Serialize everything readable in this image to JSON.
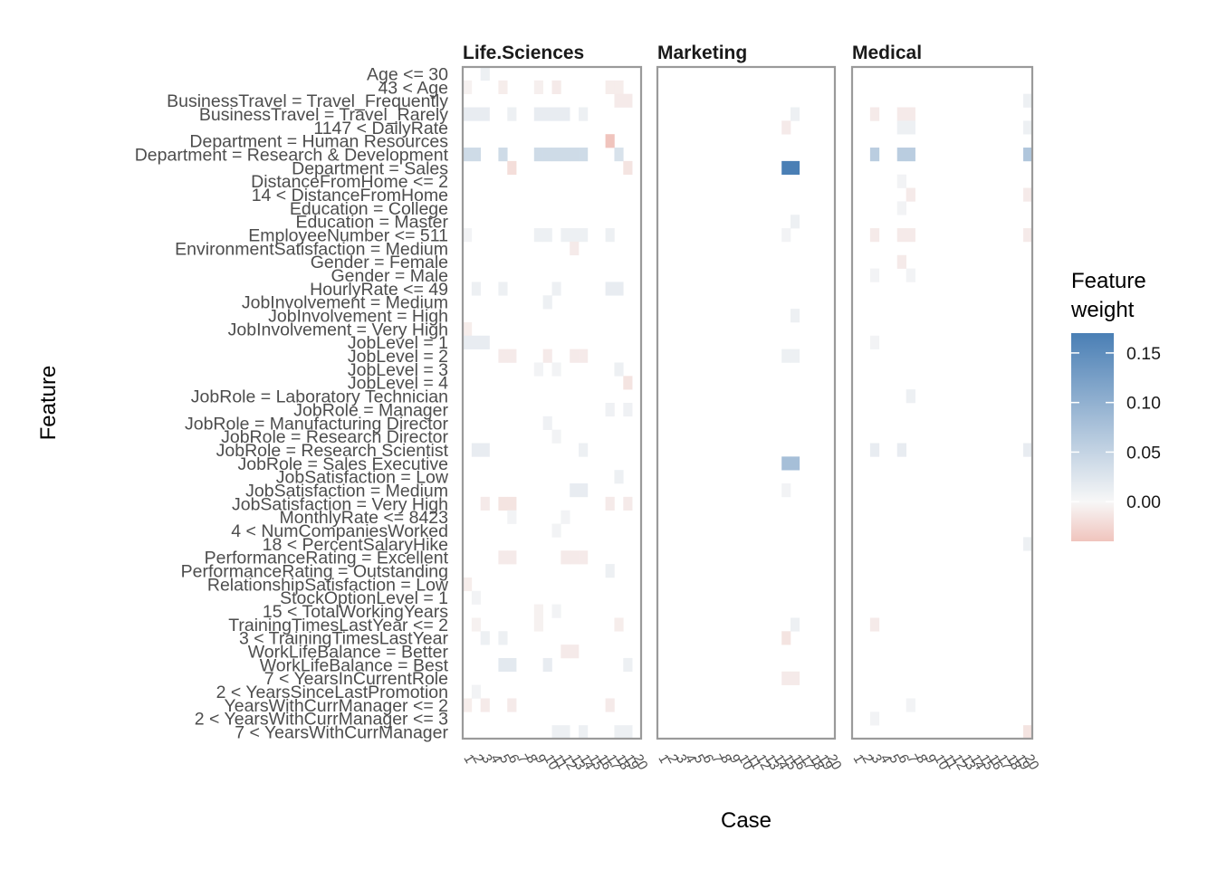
{
  "chart_data": {
    "type": "heatmap",
    "xlabel": "Case",
    "ylabel": "Feature",
    "legend_title": [
      "Feature",
      "weight"
    ],
    "legend_ticks": [
      0.15,
      0.1,
      0.05,
      0.0
    ],
    "legend_tick_labels": [
      "0.15",
      "0.10",
      "0.05",
      "0.00"
    ],
    "legend_range": [
      -0.04,
      0.17
    ],
    "color_scale": {
      "low": "#f0c4bd",
      "mid": "#f7f7f7",
      "high": "#4a7fb5"
    },
    "grid": false,
    "legend_position": "right",
    "cases": [
      "1",
      "2",
      "3",
      "4",
      "5",
      "6",
      "7",
      "8",
      "9",
      "10",
      "11",
      "12",
      "13",
      "14",
      "15",
      "16",
      "17",
      "18",
      "19",
      "20"
    ],
    "facets": [
      "Life.Sciences",
      "Marketing",
      "Medical"
    ],
    "features": [
      "Age <= 30",
      "43 < Age",
      "BusinessTravel = Travel_Frequently",
      "BusinessTravel = Travel_Rarely",
      "1147 < DailyRate",
      "Department = Human Resources",
      "Department = Research & Development",
      "Department = Sales",
      "DistanceFromHome <= 2",
      "14 < DistanceFromHome",
      "Education = College",
      "Education = Master",
      "EmployeeNumber <= 511",
      "EnvironmentSatisfaction = Medium",
      "Gender = Female",
      "Gender = Male",
      "HourlyRate <= 49",
      "JobInvolvement = Medium",
      "JobInvolvement = High",
      "JobInvolvement = Very High",
      "JobLevel = 1",
      "JobLevel = 2",
      "JobLevel = 3",
      "JobLevel = 4",
      "JobRole = Laboratory Technician",
      "JobRole = Manager",
      "JobRole = Manufacturing Director",
      "JobRole = Research Director",
      "JobRole = Research Scientist",
      "JobRole = Sales Executive",
      "JobSatisfaction = Low",
      "JobSatisfaction = Medium",
      "JobSatisfaction = Very High",
      "MonthlyRate <= 8423",
      "4 < NumCompaniesWorked",
      "18 < PercentSalaryHike",
      "PerformanceRating = Excellent",
      "PerformanceRating = Outstanding",
      "RelationshipSatisfaction = Low",
      "StockOptionLevel = 1",
      "15 < TotalWorkingYears",
      "TrainingTimesLastYear <= 2",
      "3 < TrainingTimesLastYear",
      "WorkLifeBalance = Better",
      "WorkLifeBalance = Best",
      "7 < YearsInCurrentRole",
      "2 < YearsSinceLastPromotion",
      "YearsWithCurrManager <= 2",
      "2 < YearsWithCurrManager <= 3",
      "7 < YearsWithCurrManager"
    ],
    "cells": [
      [
        "Life.Sciences",
        0,
        2,
        0.01
      ],
      [
        "Life.Sciences",
        1,
        0,
        -0.005
      ],
      [
        "Life.Sciences",
        1,
        4,
        -0.008
      ],
      [
        "Life.Sciences",
        1,
        8,
        -0.006
      ],
      [
        "Life.Sciences",
        1,
        10,
        -0.01
      ],
      [
        "Life.Sciences",
        1,
        16,
        -0.008
      ],
      [
        "Life.Sciences",
        1,
        17,
        -0.008
      ],
      [
        "Life.Sciences",
        2,
        17,
        -0.01
      ],
      [
        "Life.Sciences",
        2,
        18,
        -0.01
      ],
      [
        "Life.Sciences",
        3,
        0,
        0.015
      ],
      [
        "Life.Sciences",
        3,
        1,
        0.015
      ],
      [
        "Life.Sciences",
        3,
        2,
        0.015
      ],
      [
        "Life.Sciences",
        3,
        5,
        0.01
      ],
      [
        "Life.Sciences",
        3,
        8,
        0.015
      ],
      [
        "Life.Sciences",
        3,
        9,
        0.015
      ],
      [
        "Life.Sciences",
        3,
        10,
        0.015
      ],
      [
        "Life.Sciences",
        3,
        11,
        0.015
      ],
      [
        "Life.Sciences",
        3,
        13,
        0.01
      ],
      [
        "Life.Sciences",
        5,
        16,
        -0.04
      ],
      [
        "Life.Sciences",
        6,
        0,
        0.04
      ],
      [
        "Life.Sciences",
        6,
        1,
        0.04
      ],
      [
        "Life.Sciences",
        6,
        4,
        0.04
      ],
      [
        "Life.Sciences",
        6,
        8,
        0.04
      ],
      [
        "Life.Sciences",
        6,
        9,
        0.04
      ],
      [
        "Life.Sciences",
        6,
        10,
        0.04
      ],
      [
        "Life.Sciences",
        6,
        11,
        0.04
      ],
      [
        "Life.Sciences",
        6,
        12,
        0.04
      ],
      [
        "Life.Sciences",
        6,
        13,
        0.04
      ],
      [
        "Life.Sciences",
        6,
        17,
        0.03
      ],
      [
        "Life.Sciences",
        7,
        5,
        -0.02
      ],
      [
        "Life.Sciences",
        7,
        18,
        -0.015
      ],
      [
        "Life.Sciences",
        12,
        0,
        0.005
      ],
      [
        "Life.Sciences",
        12,
        8,
        0.01
      ],
      [
        "Life.Sciences",
        12,
        9,
        0.01
      ],
      [
        "Life.Sciences",
        12,
        11,
        0.01
      ],
      [
        "Life.Sciences",
        12,
        12,
        0.01
      ],
      [
        "Life.Sciences",
        12,
        13,
        0.01
      ],
      [
        "Life.Sciences",
        12,
        16,
        0.01
      ],
      [
        "Life.Sciences",
        13,
        12,
        -0.01
      ],
      [
        "Life.Sciences",
        16,
        1,
        0.01
      ],
      [
        "Life.Sciences",
        16,
        4,
        0.01
      ],
      [
        "Life.Sciences",
        16,
        10,
        0.01
      ],
      [
        "Life.Sciences",
        16,
        16,
        0.015
      ],
      [
        "Life.Sciences",
        16,
        17,
        0.015
      ],
      [
        "Life.Sciences",
        17,
        9,
        0.01
      ],
      [
        "Life.Sciences",
        19,
        0,
        -0.008
      ],
      [
        "Life.Sciences",
        20,
        0,
        0.015
      ],
      [
        "Life.Sciences",
        20,
        1,
        0.015
      ],
      [
        "Life.Sciences",
        20,
        2,
        0.015
      ],
      [
        "Life.Sciences",
        21,
        4,
        -0.01
      ],
      [
        "Life.Sciences",
        21,
        5,
        -0.01
      ],
      [
        "Life.Sciences",
        21,
        9,
        -0.01
      ],
      [
        "Life.Sciences",
        21,
        12,
        -0.01
      ],
      [
        "Life.Sciences",
        21,
        13,
        -0.01
      ],
      [
        "Life.Sciences",
        22,
        8,
        0.005
      ],
      [
        "Life.Sciences",
        22,
        10,
        0.005
      ],
      [
        "Life.Sciences",
        22,
        17,
        0.01
      ],
      [
        "Life.Sciences",
        23,
        18,
        -0.015
      ],
      [
        "Life.Sciences",
        25,
        16,
        0.008
      ],
      [
        "Life.Sciences",
        25,
        18,
        0.008
      ],
      [
        "Life.Sciences",
        26,
        9,
        0.008
      ],
      [
        "Life.Sciences",
        27,
        10,
        0.005
      ],
      [
        "Life.Sciences",
        28,
        1,
        0.015
      ],
      [
        "Life.Sciences",
        28,
        2,
        0.015
      ],
      [
        "Life.Sciences",
        28,
        13,
        0.01
      ],
      [
        "Life.Sciences",
        30,
        17,
        0.01
      ],
      [
        "Life.Sciences",
        31,
        12,
        0.015
      ],
      [
        "Life.Sciences",
        31,
        13,
        0.015
      ],
      [
        "Life.Sciences",
        32,
        2,
        -0.01
      ],
      [
        "Life.Sciences",
        32,
        4,
        -0.015
      ],
      [
        "Life.Sciences",
        32,
        5,
        -0.015
      ],
      [
        "Life.Sciences",
        32,
        16,
        -0.01
      ],
      [
        "Life.Sciences",
        32,
        18,
        -0.01
      ],
      [
        "Life.Sciences",
        33,
        5,
        0.005
      ],
      [
        "Life.Sciences",
        33,
        11,
        0.005
      ],
      [
        "Life.Sciences",
        34,
        10,
        0.005
      ],
      [
        "Life.Sciences",
        36,
        4,
        -0.01
      ],
      [
        "Life.Sciences",
        36,
        5,
        -0.01
      ],
      [
        "Life.Sciences",
        36,
        11,
        -0.01
      ],
      [
        "Life.Sciences",
        36,
        12,
        -0.01
      ],
      [
        "Life.Sciences",
        36,
        13,
        -0.01
      ],
      [
        "Life.Sciences",
        37,
        16,
        0.01
      ],
      [
        "Life.Sciences",
        38,
        0,
        -0.008
      ],
      [
        "Life.Sciences",
        39,
        1,
        0.005
      ],
      [
        "Life.Sciences",
        40,
        8,
        -0.005
      ],
      [
        "Life.Sciences",
        40,
        10,
        0.005
      ],
      [
        "Life.Sciences",
        41,
        1,
        -0.005
      ],
      [
        "Life.Sciences",
        41,
        8,
        -0.005
      ],
      [
        "Life.Sciences",
        41,
        17,
        -0.008
      ],
      [
        "Life.Sciences",
        42,
        2,
        0.01
      ],
      [
        "Life.Sciences",
        42,
        4,
        0.01
      ],
      [
        "Life.Sciences",
        43,
        11,
        -0.01
      ],
      [
        "Life.Sciences",
        43,
        12,
        -0.01
      ],
      [
        "Life.Sciences",
        44,
        4,
        0.02
      ],
      [
        "Life.Sciences",
        44,
        5,
        0.02
      ],
      [
        "Life.Sciences",
        44,
        9,
        0.015
      ],
      [
        "Life.Sciences",
        44,
        18,
        0.01
      ],
      [
        "Life.Sciences",
        46,
        1,
        0.005
      ],
      [
        "Life.Sciences",
        47,
        0,
        -0.008
      ],
      [
        "Life.Sciences",
        47,
        2,
        -0.01
      ],
      [
        "Life.Sciences",
        47,
        5,
        -0.01
      ],
      [
        "Life.Sciences",
        47,
        16,
        -0.01
      ],
      [
        "Life.Sciences",
        49,
        10,
        0.01
      ],
      [
        "Life.Sciences",
        49,
        11,
        0.01
      ],
      [
        "Life.Sciences",
        49,
        13,
        0.01
      ],
      [
        "Life.Sciences",
        49,
        17,
        0.01
      ],
      [
        "Life.Sciences",
        49,
        18,
        0.01
      ],
      [
        "Marketing",
        3,
        15,
        0.01
      ],
      [
        "Marketing",
        4,
        14,
        -0.01
      ],
      [
        "Marketing",
        7,
        14,
        0.17
      ],
      [
        "Marketing",
        7,
        15,
        0.17
      ],
      [
        "Marketing",
        11,
        15,
        0.01
      ],
      [
        "Marketing",
        12,
        14,
        0.005
      ],
      [
        "Marketing",
        18,
        15,
        0.01
      ],
      [
        "Marketing",
        21,
        14,
        0.01
      ],
      [
        "Marketing",
        21,
        15,
        0.01
      ],
      [
        "Marketing",
        29,
        14,
        0.08
      ],
      [
        "Marketing",
        29,
        15,
        0.08
      ],
      [
        "Marketing",
        31,
        14,
        0.005
      ],
      [
        "Marketing",
        41,
        15,
        0.01
      ],
      [
        "Marketing",
        42,
        14,
        -0.015
      ],
      [
        "Marketing",
        45,
        14,
        -0.01
      ],
      [
        "Marketing",
        45,
        15,
        -0.01
      ],
      [
        "Medical",
        2,
        19,
        0.01
      ],
      [
        "Medical",
        3,
        2,
        -0.01
      ],
      [
        "Medical",
        3,
        5,
        -0.01
      ],
      [
        "Medical",
        3,
        6,
        -0.01
      ],
      [
        "Medical",
        4,
        5,
        0.01
      ],
      [
        "Medical",
        4,
        6,
        0.01
      ],
      [
        "Medical",
        4,
        19,
        0.01
      ],
      [
        "Medical",
        6,
        2,
        0.06
      ],
      [
        "Medical",
        6,
        5,
        0.06
      ],
      [
        "Medical",
        6,
        6,
        0.06
      ],
      [
        "Medical",
        6,
        19,
        0.07
      ],
      [
        "Medical",
        8,
        5,
        0.005
      ],
      [
        "Medical",
        9,
        6,
        -0.01
      ],
      [
        "Medical",
        9,
        19,
        -0.01
      ],
      [
        "Medical",
        10,
        5,
        0.005
      ],
      [
        "Medical",
        12,
        2,
        -0.01
      ],
      [
        "Medical",
        12,
        5,
        -0.01
      ],
      [
        "Medical",
        12,
        6,
        -0.01
      ],
      [
        "Medical",
        12,
        19,
        -0.01
      ],
      [
        "Medical",
        14,
        5,
        -0.01
      ],
      [
        "Medical",
        15,
        2,
        0.005
      ],
      [
        "Medical",
        15,
        6,
        0.005
      ],
      [
        "Medical",
        20,
        2,
        0.005
      ],
      [
        "Medical",
        24,
        6,
        0.01
      ],
      [
        "Medical",
        28,
        2,
        0.015
      ],
      [
        "Medical",
        28,
        5,
        0.015
      ],
      [
        "Medical",
        28,
        19,
        0.015
      ],
      [
        "Medical",
        35,
        19,
        0.01
      ],
      [
        "Medical",
        41,
        2,
        -0.01
      ],
      [
        "Medical",
        47,
        6,
        0.005
      ],
      [
        "Medical",
        48,
        2,
        0.005
      ],
      [
        "Medical",
        49,
        19,
        -0.015
      ]
    ]
  }
}
